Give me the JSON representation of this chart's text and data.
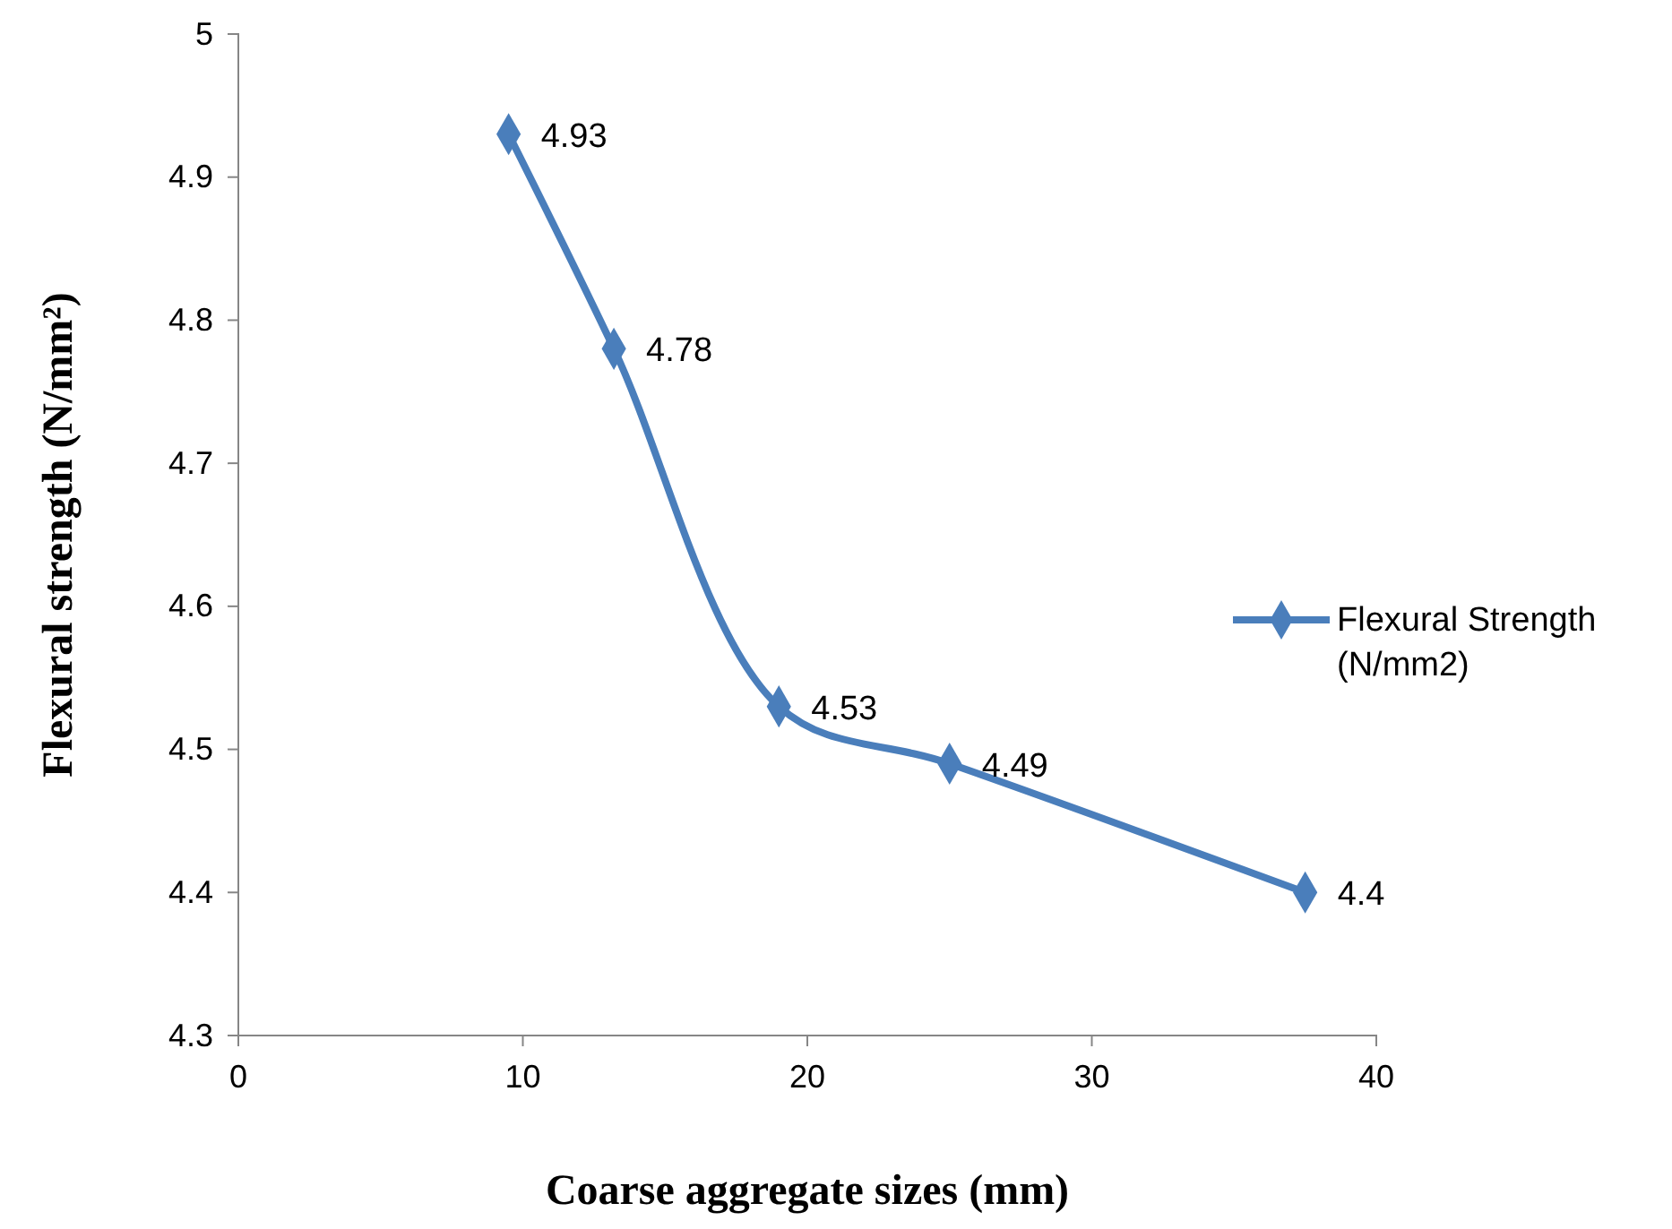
{
  "chart_data": {
    "type": "line",
    "xlabel": "Coarse aggregate sizes (mm)",
    "ylabel": "Flexural strength (N/mm²)",
    "x": [
      9.5,
      13.2,
      19,
      25,
      37.5
    ],
    "series": [
      {
        "name": "Flexural Strength (N/mm2)",
        "color": "#4a7ebb",
        "values": [
          4.93,
          4.78,
          4.53,
          4.49,
          4.4
        ]
      }
    ],
    "xlim": [
      0,
      40
    ],
    "xticks": [
      0,
      10,
      20,
      30,
      40
    ],
    "ylim": [
      4.3,
      5
    ],
    "yticks": [
      4.3,
      4.4,
      4.5,
      4.6,
      4.7,
      4.8,
      4.9,
      5
    ],
    "grid": false,
    "legend": "right",
    "marker": "diamond",
    "line_style": "solid",
    "data_labels": true
  }
}
